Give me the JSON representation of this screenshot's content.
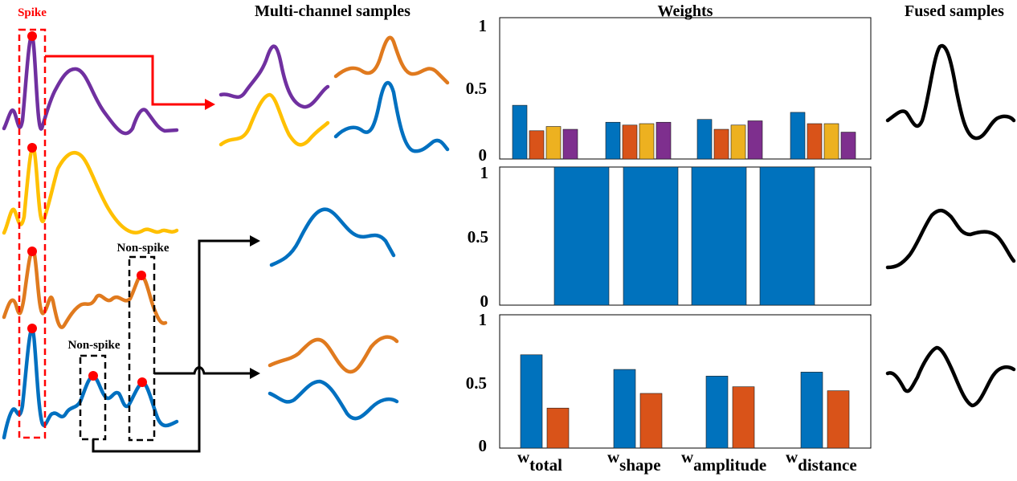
{
  "headers": {
    "multi_channel": "Multi-channel samples",
    "weights": "Weights",
    "fused": "Fused samples"
  },
  "labels": {
    "spike": "Spike",
    "non_spike_right": "Non-spike",
    "non_spike_left": "Non-spike"
  },
  "colors": {
    "purple": "#7030a0",
    "yellow": "#ffc000",
    "orange": "#e07a1e",
    "blue": "#0070c0",
    "red": "#ff0000",
    "bar_blue": "#0072bd",
    "bar_orange": "#d95319",
    "bar_yellow": "#edb120",
    "bar_purple": "#7e2f8e"
  },
  "chart_data": [
    {
      "type": "bar",
      "categories": [
        "total",
        "shape",
        "amplitude",
        "distance"
      ],
      "ylim": [
        0,
        1
      ],
      "ytick_labels": [
        "0",
        "0.5",
        "1"
      ],
      "series": [
        {
          "color": "#0072bd",
          "values": [
            0.38,
            0.26,
            0.28,
            0.33
          ]
        },
        {
          "color": "#d95319",
          "values": [
            0.2,
            0.24,
            0.21,
            0.25
          ]
        },
        {
          "color": "#edb120",
          "values": [
            0.23,
            0.25,
            0.24,
            0.25
          ]
        },
        {
          "color": "#7e2f8e",
          "values": [
            0.21,
            0.26,
            0.27,
            0.19
          ]
        }
      ]
    },
    {
      "type": "bar",
      "categories": [
        "total",
        "shape",
        "amplitude",
        "distance"
      ],
      "ylim": [
        0,
        1
      ],
      "ytick_labels": [
        "0",
        "0.5",
        "1"
      ],
      "series": [
        {
          "color": "#0072bd",
          "values": [
            1,
            1,
            1,
            1
          ]
        }
      ]
    },
    {
      "type": "bar",
      "categories": [
        "total",
        "shape",
        "amplitude",
        "distance"
      ],
      "ylim": [
        0,
        1
      ],
      "ytick_labels": [
        "0",
        "0.5",
        "1"
      ],
      "series": [
        {
          "color": "#0072bd",
          "values": [
            0.7,
            0.59,
            0.54,
            0.57
          ]
        },
        {
          "color": "#d95319",
          "values": [
            0.3,
            0.41,
            0.46,
            0.43
          ]
        }
      ],
      "x_labels": [
        {
          "main": "w",
          "sub": "total"
        },
        {
          "main": "w",
          "sub": "shape"
        },
        {
          "main": "w",
          "sub": "amplitude"
        },
        {
          "main": "w",
          "sub": "distance"
        }
      ]
    }
  ]
}
